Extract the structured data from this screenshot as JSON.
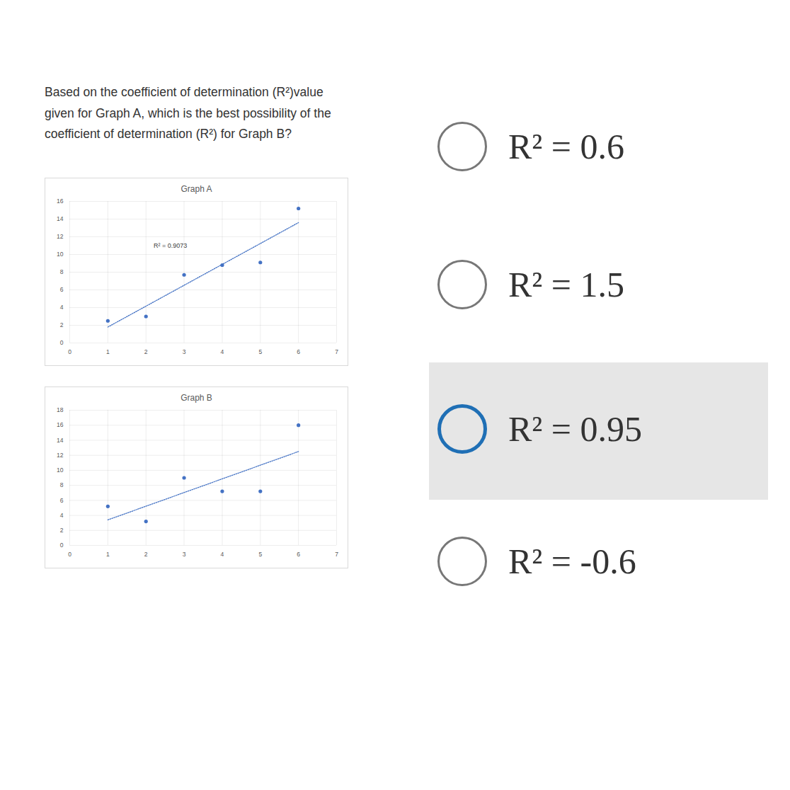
{
  "question": "Based on the coefficient of determination (R²)value given for Graph A, which is the best possibility of the coefficient of determination (R²) for Graph B?",
  "chart_data": [
    {
      "type": "scatter",
      "title": "Graph A",
      "x": [
        1,
        2,
        3,
        4,
        5,
        6
      ],
      "values": [
        2.5,
        3.0,
        7.7,
        8.8,
        9.1,
        15.2
      ],
      "color": "#4472c4",
      "xlim": [
        0,
        7
      ],
      "xticks": [
        0,
        1,
        2,
        3,
        4,
        5,
        6,
        7
      ],
      "ylim": [
        0,
        16
      ],
      "yticks": [
        0,
        2,
        4,
        6,
        8,
        10,
        12,
        14,
        16
      ],
      "grid": true,
      "trendline": {
        "x": [
          1,
          6
        ],
        "y": [
          1.8,
          13.6
        ],
        "line_style": "dotted"
      },
      "annotations": [
        {
          "text": "R² = 0.9073",
          "x": 2.2,
          "y": 11
        }
      ]
    },
    {
      "type": "scatter",
      "title": "Graph B",
      "x": [
        1,
        2,
        3,
        4,
        5,
        6
      ],
      "values": [
        5.2,
        3.2,
        9.0,
        7.2,
        7.2,
        16.0
      ],
      "color": "#4472c4",
      "xlim": [
        0,
        7
      ],
      "xticks": [
        0,
        1,
        2,
        3,
        4,
        5,
        6,
        7
      ],
      "ylim": [
        0,
        18
      ],
      "yticks": [
        0,
        2,
        4,
        6,
        8,
        10,
        12,
        14,
        16,
        18
      ],
      "grid": true,
      "trendline": {
        "x": [
          1,
          6
        ],
        "y": [
          3.4,
          12.5
        ],
        "line_style": "dotted"
      }
    }
  ],
  "options": [
    "R² = 0.6",
    "R² = 1.5",
    "R² = 0.95",
    "R² = -0.6"
  ],
  "selected": "R² = 0.95"
}
